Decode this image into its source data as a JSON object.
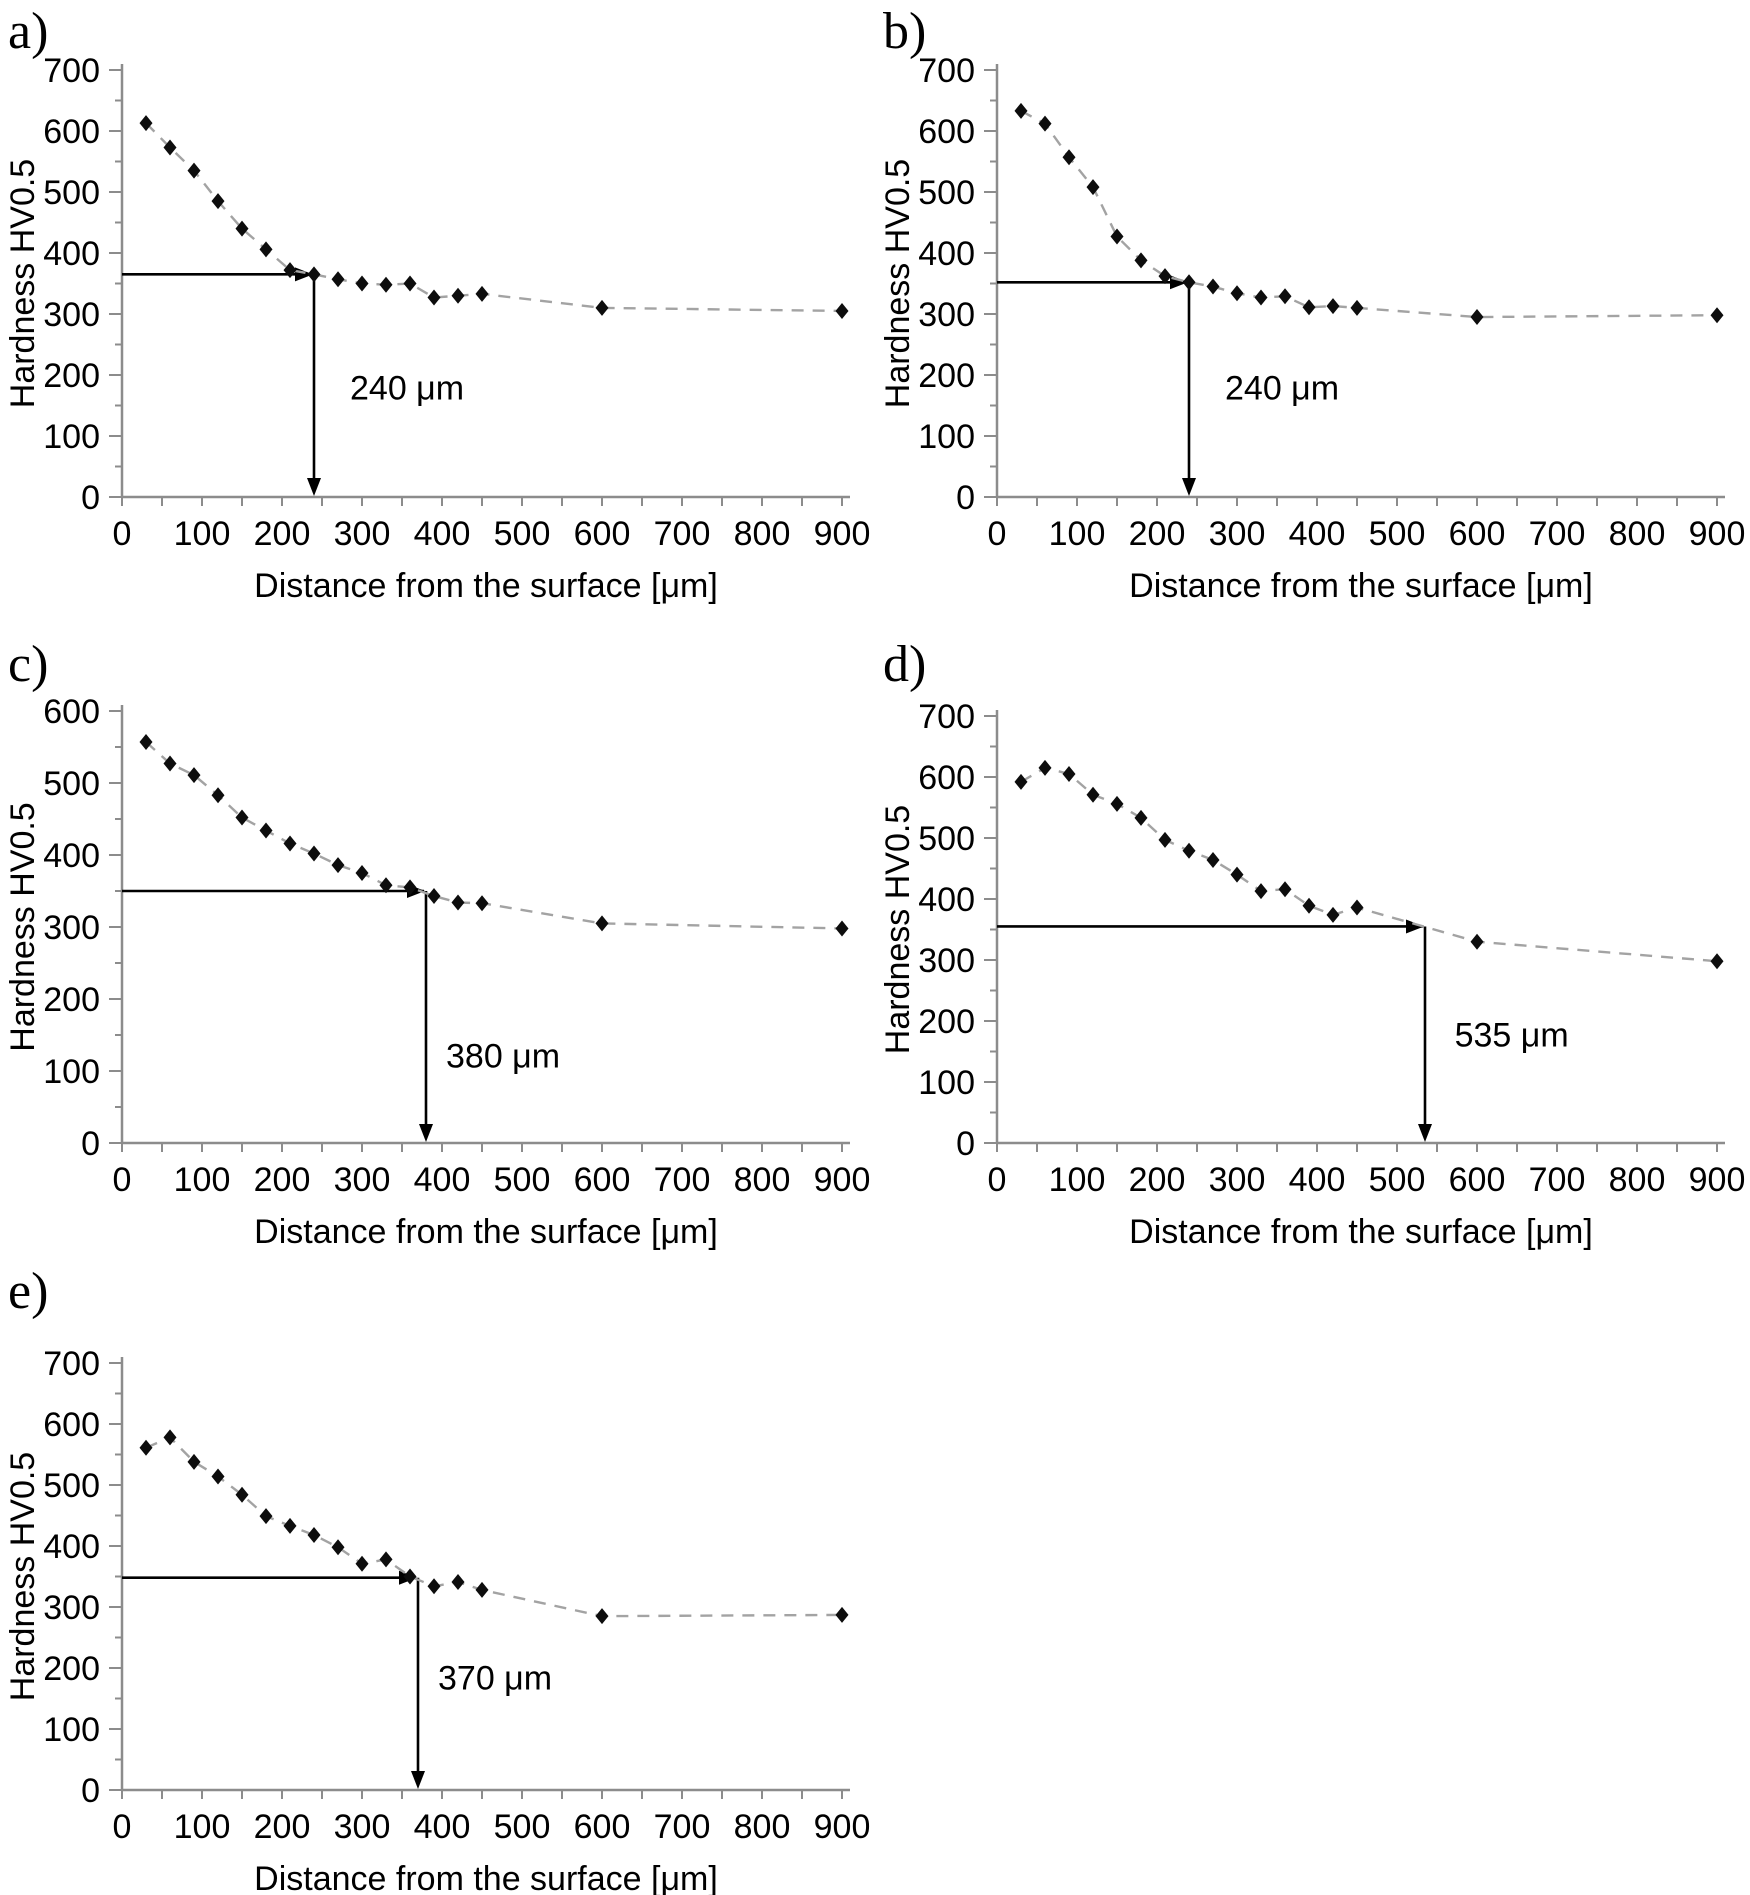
{
  "figure": {
    "xlabel": "Distance from the surface [μm]",
    "ylabel": "Hardness HV0.5"
  },
  "colors": {
    "marker": "#0d0d0d",
    "series_dash_line": "#a3a3a3",
    "axis": "#8c8c8c",
    "annotation": "#000000",
    "text": "#000000",
    "background": "#ffffff"
  },
  "chart_data": [
    {
      "panel": "a)",
      "type": "scatter",
      "marker": "diamond",
      "line_style": "dashed",
      "xlabel": "Distance from the surface [μm]",
      "ylabel": "Hardness HV0.5",
      "xlim": [
        0,
        900
      ],
      "ylim": [
        0,
        700
      ],
      "xtick_step": 100,
      "xtick_minor_step": 50,
      "ytick_step": 100,
      "ytick_minor_step": 50,
      "x": [
        30,
        60,
        90,
        120,
        150,
        180,
        210,
        240,
        270,
        300,
        330,
        360,
        390,
        420,
        450,
        600,
        900
      ],
      "y": [
        613,
        573,
        535,
        485,
        440,
        406,
        372,
        365,
        357,
        350,
        348,
        350,
        327,
        330,
        333,
        310,
        305
      ],
      "annotation": {
        "text": "240 μm",
        "depth_um": 240,
        "level_hv": 365,
        "label_pos": [
          285,
          160
        ]
      }
    },
    {
      "panel": "b)",
      "type": "scatter",
      "marker": "diamond",
      "line_style": "dashed",
      "xlabel": "Distance from the surface [μm]",
      "ylabel": "Hardness HV0.5",
      "xlim": [
        0,
        900
      ],
      "ylim": [
        0,
        700
      ],
      "xtick_step": 100,
      "xtick_minor_step": 50,
      "ytick_step": 100,
      "ytick_minor_step": 50,
      "x": [
        30,
        60,
        90,
        120,
        150,
        180,
        210,
        240,
        270,
        300,
        330,
        360,
        390,
        420,
        450,
        600,
        900
      ],
      "y": [
        633,
        612,
        557,
        508,
        427,
        388,
        362,
        352,
        345,
        334,
        327,
        329,
        311,
        313,
        310,
        295,
        298
      ],
      "annotation": {
        "text": "240 μm",
        "depth_um": 240,
        "level_hv": 352,
        "label_pos": [
          285,
          160
        ]
      }
    },
    {
      "panel": "c)",
      "type": "scatter",
      "marker": "diamond",
      "line_style": "dashed",
      "xlabel": "Distance from the surface [μm]",
      "ylabel": "Hardness HV0.5",
      "xlim": [
        0,
        900
      ],
      "ylim": [
        0,
        600
      ],
      "xtick_step": 100,
      "xtick_minor_step": 50,
      "ytick_step": 100,
      "ytick_minor_step": 50,
      "x": [
        30,
        60,
        90,
        120,
        150,
        180,
        210,
        240,
        270,
        300,
        330,
        360,
        390,
        420,
        450,
        600,
        900
      ],
      "y": [
        557,
        527,
        511,
        483,
        452,
        434,
        416,
        402,
        386,
        375,
        358,
        355,
        343,
        334,
        333,
        305,
        298
      ],
      "annotation": {
        "text": "380 μm",
        "depth_um": 380,
        "level_hv": 350,
        "label_pos": [
          405,
          105
        ]
      }
    },
    {
      "panel": "d)",
      "type": "scatter",
      "marker": "diamond",
      "line_style": "dashed",
      "xlabel": "Distance from the surface [μm]",
      "ylabel": "Hardness HV0.5",
      "xlim": [
        0,
        900
      ],
      "ylim": [
        0,
        700
      ],
      "xtick_step": 100,
      "xtick_minor_step": 50,
      "ytick_step": 100,
      "ytick_minor_step": 50,
      "x": [
        30,
        60,
        90,
        120,
        150,
        180,
        210,
        240,
        270,
        300,
        330,
        360,
        390,
        420,
        450,
        600,
        900
      ],
      "y": [
        592,
        615,
        605,
        571,
        556,
        533,
        497,
        479,
        464,
        440,
        413,
        416,
        389,
        374,
        386,
        330,
        298
      ],
      "annotation": {
        "text": "535 μm",
        "depth_um": 535,
        "level_hv": 355,
        "label_pos": [
          572,
          158
        ]
      }
    },
    {
      "panel": "e)",
      "type": "scatter",
      "marker": "diamond",
      "line_style": "dashed",
      "xlabel": "Distance from the surface [μm]",
      "ylabel": "Hardness HV0.5",
      "xlim": [
        0,
        900
      ],
      "ylim": [
        0,
        700
      ],
      "xtick_step": 100,
      "xtick_minor_step": 50,
      "ytick_step": 100,
      "ytick_minor_step": 50,
      "x": [
        30,
        60,
        90,
        120,
        150,
        180,
        210,
        240,
        270,
        300,
        330,
        360,
        390,
        420,
        450,
        600,
        900
      ],
      "y": [
        561,
        578,
        538,
        514,
        484,
        449,
        433,
        418,
        398,
        371,
        378,
        350,
        334,
        341,
        328,
        285,
        287
      ],
      "annotation": {
        "text": "370 μm",
        "depth_um": 370,
        "level_hv": 348,
        "label_pos": [
          395,
          165
        ]
      }
    }
  ]
}
